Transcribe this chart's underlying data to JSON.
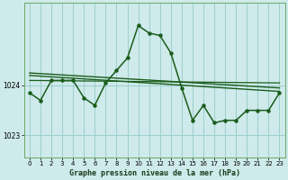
{
  "background_color": "#ceeaea",
  "plot_bg_color": "#ceeaea",
  "grid_color": "#9ecece",
  "line_color": "#1a5c1a",
  "xlabel": "Graphe pression niveau de la mer (hPa)",
  "ylim": [
    1022.55,
    1025.65
  ],
  "yticks": [
    1023,
    1024
  ],
  "xlim": [
    -0.5,
    23.5
  ],
  "xticks": [
    0,
    1,
    2,
    3,
    4,
    5,
    6,
    7,
    8,
    9,
    10,
    11,
    12,
    13,
    14,
    15,
    16,
    17,
    18,
    19,
    20,
    21,
    22,
    23
  ],
  "series": {
    "line1": {
      "x": [
        0,
        1,
        2,
        3,
        4,
        5,
        6,
        7,
        8,
        9,
        10,
        11,
        12,
        13,
        14,
        15,
        16,
        17,
        18,
        19,
        20,
        21,
        22,
        23
      ],
      "y": [
        1023.85,
        1023.7,
        1024.1,
        1024.1,
        1024.1,
        1023.75,
        1023.6,
        1024.05,
        1024.3,
        1024.55,
        1025.2,
        1025.05,
        1025.0,
        1024.65,
        1023.95,
        1023.3,
        1023.6,
        1023.25,
        1023.3,
        1023.3,
        1023.5,
        1023.5,
        1023.5,
        1023.85
      ],
      "markersize": 2.2,
      "linewidth": 1.1
    },
    "trend1": {
      "x": [
        0,
        23
      ],
      "y": [
        1024.2,
        1023.88
      ],
      "linewidth": 1.0
    },
    "trend2": {
      "x": [
        0,
        23
      ],
      "y": [
        1024.25,
        1023.95
      ],
      "linewidth": 1.0
    },
    "trend3": {
      "x": [
        0,
        23
      ],
      "y": [
        1024.1,
        1024.05
      ],
      "linewidth": 0.9
    }
  }
}
